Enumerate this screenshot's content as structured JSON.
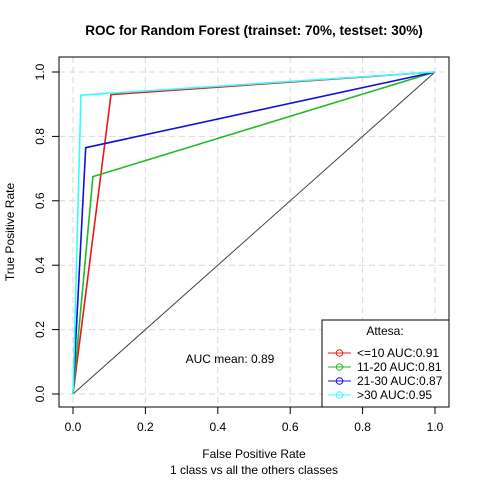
{
  "chart_data": {
    "type": "line",
    "title": "ROC for Random Forest (trainset: 70%, testset: 30%)",
    "xlabel": "False Positive Rate",
    "xlabel_sub": "1 class vs all the others classes",
    "ylabel": "True Positive Rate",
    "xlim": [
      0,
      1
    ],
    "ylim": [
      0,
      1
    ],
    "grid": true,
    "x_ticks": [
      "0.0",
      "0.2",
      "0.4",
      "0.6",
      "0.8",
      "1.0"
    ],
    "y_ticks": [
      "0.0",
      "0.2",
      "0.4",
      "0.6",
      "0.8",
      "1.0"
    ],
    "annotation": "AUC mean: 0.89",
    "legend": {
      "title": "Attesa:",
      "position": "bottom-right"
    },
    "diagonal": {
      "x": [
        0,
        1
      ],
      "y": [
        0,
        1
      ],
      "color": "#404040"
    },
    "series": [
      {
        "name": "<=10 AUC:0.91",
        "color": "#e41a1c",
        "x": [
          0,
          0.105,
          1
        ],
        "y": [
          0,
          0.93,
          1
        ]
      },
      {
        "name": "11-20 AUC:0.81",
        "color": "#22bb22",
        "x": [
          0,
          0.055,
          1
        ],
        "y": [
          0,
          0.675,
          1
        ]
      },
      {
        "name": "21-30 AUC:0.87",
        "color": "#1010dd",
        "x": [
          0,
          0.035,
          1
        ],
        "y": [
          0,
          0.765,
          1
        ]
      },
      {
        "name": ">30 AUC:0.95",
        "color": "#33ffff",
        "x": [
          0,
          0.022,
          1
        ],
        "y": [
          0,
          0.928,
          1
        ]
      }
    ]
  }
}
